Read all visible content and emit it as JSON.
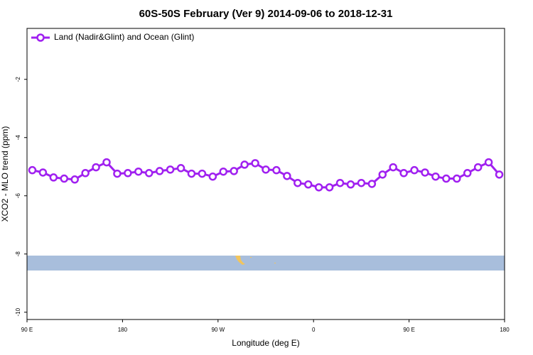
{
  "chart_data": {
    "type": "line",
    "title": "60S-50S February (Ver 9)   2014-09-06 to 2018-12-31",
    "x_label": "Longitude (deg E)",
    "y_label": "XCO2 - MLO trend (ppm)",
    "x": [
      95,
      105,
      115,
      125,
      135,
      145,
      155,
      165,
      175,
      185,
      195,
      205,
      215,
      225,
      235,
      245,
      255,
      265,
      275,
      285,
      295,
      305,
      315,
      325,
      335,
      345,
      355,
      365,
      375,
      385,
      395,
      405,
      415,
      425,
      435,
      445,
      455,
      465,
      475,
      485,
      495,
      505,
      515,
      525,
      535
    ],
    "series": [
      {
        "name": "Land (Nadir&Glint) and Ocean (Glint)",
        "color": "#a020f0",
        "values": [
          -5.12,
          -5.2,
          -5.37,
          -5.41,
          -5.44,
          -5.22,
          -5.02,
          -4.85,
          -5.24,
          -5.22,
          -5.17,
          -5.22,
          -5.15,
          -5.1,
          -5.05,
          -5.24,
          -5.24,
          -5.34,
          -5.17,
          -5.15,
          -4.93,
          -4.88,
          -5.1,
          -5.12,
          -5.32,
          -5.56,
          -5.61,
          -5.71,
          -5.71,
          -5.56,
          -5.61,
          -5.56,
          -5.59,
          -5.27,
          -5.02,
          -5.22,
          -5.12,
          -5.2,
          -5.34,
          -5.41,
          -5.41,
          -5.22,
          -5.02,
          -4.85,
          -5.27
        ]
      }
    ],
    "xlim": [
      90,
      540
    ],
    "xticks": [
      {
        "value": 90,
        "label": "90 E"
      },
      180,
      {
        "value": 270,
        "label": "90 W"
      },
      {
        "value": 360,
        "label": "0"
      },
      {
        "value": 450,
        "label": "90 E"
      },
      {
        "value": 540,
        "label": "180"
      }
    ],
    "ylim": [
      -10.25,
      -0.25
    ],
    "yticks": [
      -10,
      -8,
      -6,
      -4,
      -2
    ],
    "legend": "top-left"
  }
}
